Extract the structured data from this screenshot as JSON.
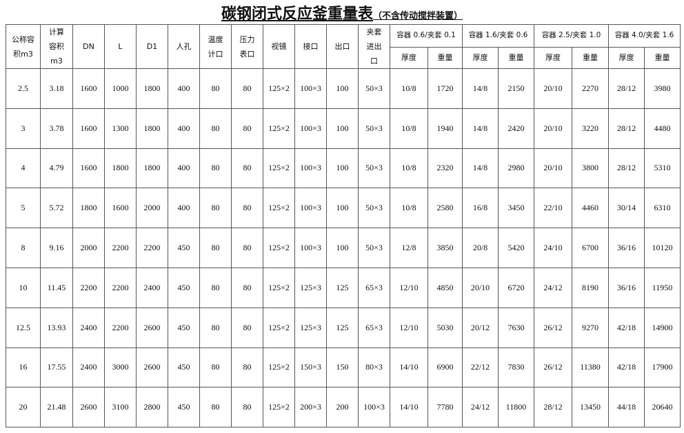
{
  "title": "碳钢闭式反应釜重量表",
  "subtitle": "（不含传动搅拌装置）",
  "headers": {
    "fixed": [
      "公称容积m3",
      "计算容积m3",
      "DN",
      "L",
      "D1",
      "人孔",
      "温度计口",
      "压力表口",
      "视镜",
      "接口",
      "出口",
      "夹套进出口"
    ],
    "groups": [
      "容器 0.6/夹套 0.1",
      "容器 1.6/夹套 0.6",
      "容器 2.5/夹套 1.0",
      "容器 4.0/夹套 1.6"
    ],
    "sub": [
      "厚度",
      "重量"
    ]
  },
  "rows": [
    [
      "2.5",
      "3.18",
      "1600",
      "1000",
      "1800",
      "400",
      "80",
      "80",
      "125×2",
      "100×3",
      "100",
      "50×3",
      "10/8",
      "1720",
      "14/8",
      "2150",
      "20/10",
      "2270",
      "28/12",
      "3980"
    ],
    [
      "3",
      "3.78",
      "1600",
      "1300",
      "1800",
      "400",
      "80",
      "80",
      "125×2",
      "100×3",
      "100",
      "50×3",
      "10/8",
      "1940",
      "14/8",
      "2420",
      "20/10",
      "3220",
      "28/12",
      "4480"
    ],
    [
      "4",
      "4.79",
      "1600",
      "1800",
      "1800",
      "400",
      "80",
      "80",
      "125×2",
      "100×3",
      "100",
      "50×3",
      "10/8",
      "2320",
      "14/8",
      "2980",
      "20/10",
      "3800",
      "28/12",
      "5310"
    ],
    [
      "5",
      "5.72",
      "1800",
      "1600",
      "2000",
      "400",
      "80",
      "80",
      "125×2",
      "100×3",
      "100",
      "50×3",
      "10/8",
      "2580",
      "16/8",
      "3450",
      "22/10",
      "4460",
      "30/14",
      "6310"
    ],
    [
      "8",
      "9.16",
      "2000",
      "2200",
      "2200",
      "450",
      "80",
      "80",
      "125×2",
      "100×3",
      "100",
      "50×3",
      "12/8",
      "3850",
      "20/8",
      "5420",
      "24/10",
      "6700",
      "36/16",
      "10120"
    ],
    [
      "10",
      "11.45",
      "2200",
      "2200",
      "2400",
      "450",
      "80",
      "80",
      "125×2",
      "125×3",
      "125",
      "65×3",
      "12/10",
      "4850",
      "20/10",
      "6720",
      "24/12",
      "8190",
      "36/16",
      "11950"
    ],
    [
      "12.5",
      "13.93",
      "2400",
      "2200",
      "2600",
      "450",
      "80",
      "80",
      "125×2",
      "125×3",
      "125",
      "65×3",
      "12/10",
      "5030",
      "20/12",
      "7630",
      "26/12",
      "9270",
      "42/18",
      "14900"
    ],
    [
      "16",
      "17.55",
      "2400",
      "3000",
      "2600",
      "450",
      "80",
      "80",
      "125×2",
      "150×3",
      "150",
      "80×3",
      "14/10",
      "6900",
      "22/12",
      "7830",
      "26/12",
      "11380",
      "42/18",
      "17900"
    ],
    [
      "20",
      "21.48",
      "2600",
      "3100",
      "2800",
      "450",
      "80",
      "80",
      "125×2",
      "200×3",
      "200",
      "100×3",
      "14/10",
      "7780",
      "24/12",
      "11800",
      "28/12",
      "13450",
      "44/18",
      "20640"
    ]
  ]
}
